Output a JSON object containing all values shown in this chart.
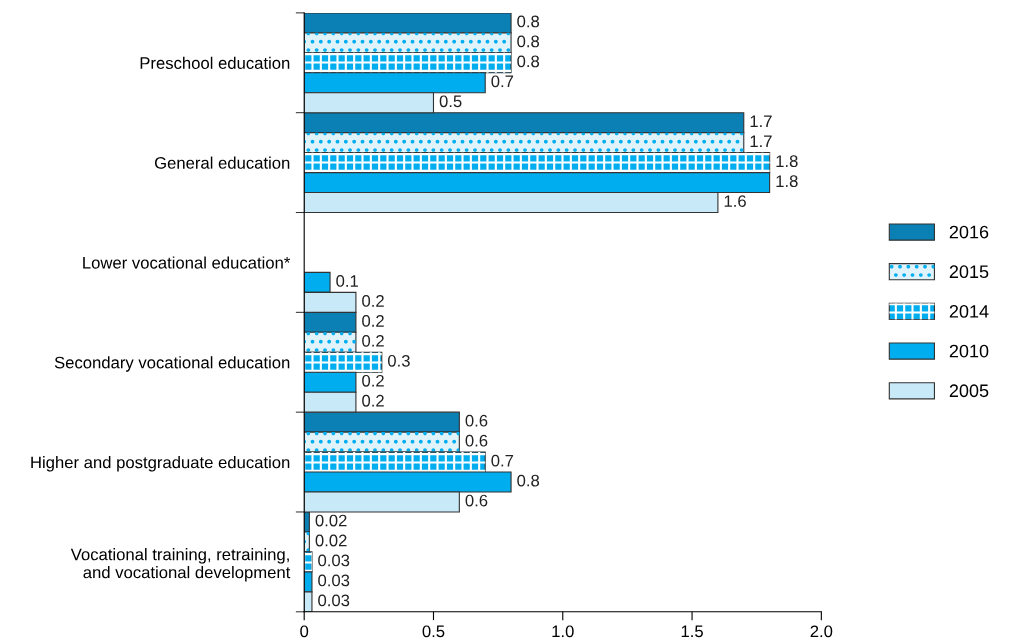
{
  "chart_data": {
    "type": "bar",
    "orientation": "horizontal",
    "categories": [
      "Preschool education",
      "General education",
      "Lower vocational education*",
      "Secondary vocational education",
      "Higher and postgraduate education",
      "Vocational training, retraining,\nand vocational development"
    ],
    "series": [
      {
        "name": "2016",
        "color": "#0a80b4",
        "values": [
          0.8,
          1.7,
          null,
          0.2,
          0.6,
          0.02
        ]
      },
      {
        "name": "2015",
        "color": "#e0f3fb",
        "values": [
          0.8,
          1.7,
          null,
          0.2,
          0.6,
          0.02
        ]
      },
      {
        "name": "2014",
        "color": "#00aeef",
        "values": [
          0.8,
          1.8,
          null,
          0.3,
          0.7,
          0.03
        ]
      },
      {
        "name": "2010",
        "color": "#00aeef",
        "values": [
          0.7,
          1.8,
          0.1,
          0.2,
          0.8,
          0.03
        ]
      },
      {
        "name": "2005",
        "color": "#c8e9f8",
        "values": [
          0.5,
          1.6,
          0.2,
          0.2,
          0.6,
          0.03
        ]
      }
    ],
    "xlim": [
      0,
      2.0
    ],
    "xticks": [
      0,
      0.5,
      {
        "value": 1.0,
        "label": "1.0"
      },
      1.5,
      {
        "value": 2.0,
        "label": "2.0"
      }
    ],
    "data_labels": true,
    "legend": "right",
    "grid": false
  }
}
